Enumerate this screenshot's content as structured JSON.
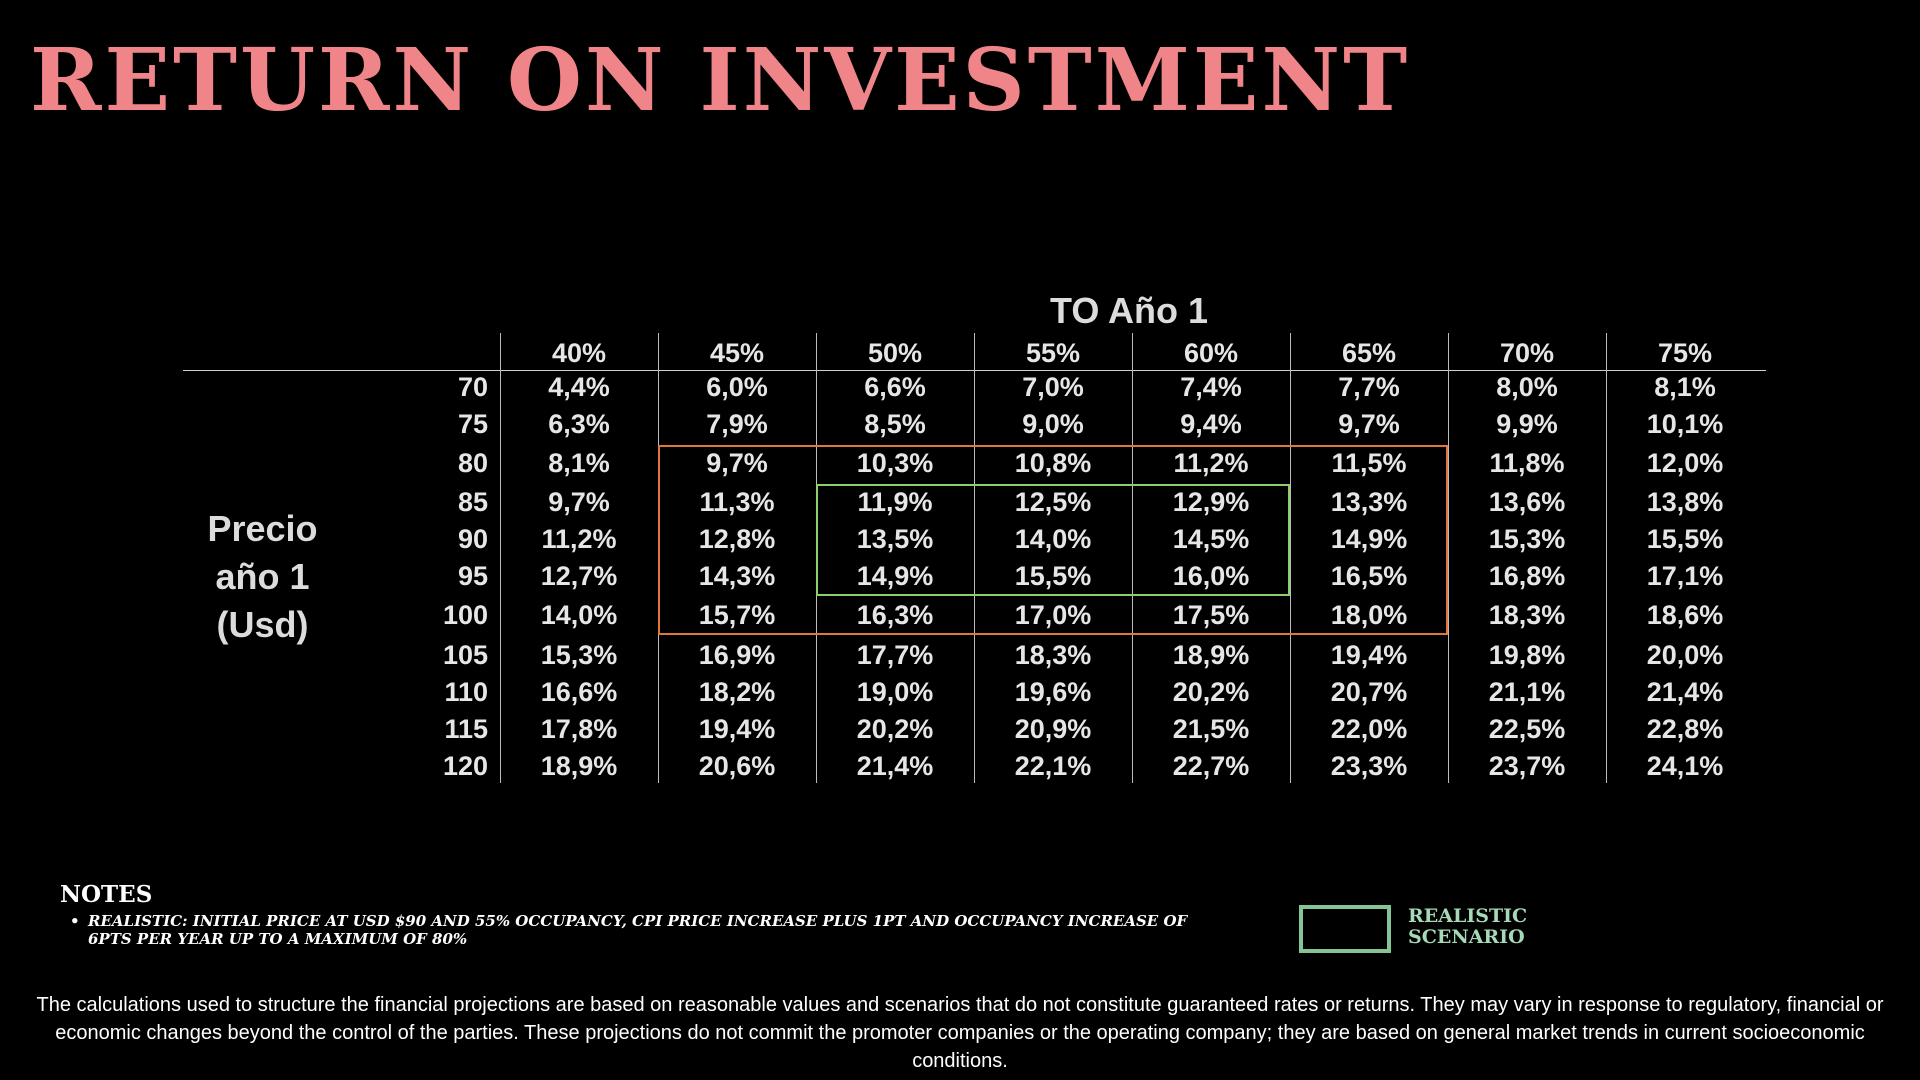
{
  "title": "RETURN ON INVESTMENT",
  "table": {
    "column_header_title": "TO Año 1",
    "row_header_title": [
      "Precio",
      "año 1",
      "(Usd)"
    ],
    "columns": [
      "40%",
      "45%",
      "50%",
      "55%",
      "60%",
      "65%",
      "70%",
      "75%"
    ],
    "rows": [
      {
        "price": "70",
        "values": [
          "4,4%",
          "6,0%",
          "6,6%",
          "7,0%",
          "7,4%",
          "7,7%",
          "8,0%",
          "8,1%"
        ]
      },
      {
        "price": "75",
        "values": [
          "6,3%",
          "7,9%",
          "8,5%",
          "9,0%",
          "9,4%",
          "9,7%",
          "9,9%",
          "10,1%"
        ]
      },
      {
        "price": "80",
        "values": [
          "8,1%",
          "9,7%",
          "10,3%",
          "10,8%",
          "11,2%",
          "11,5%",
          "11,8%",
          "12,0%"
        ]
      },
      {
        "price": "85",
        "values": [
          "9,7%",
          "11,3%",
          "11,9%",
          "12,5%",
          "12,9%",
          "13,3%",
          "13,6%",
          "13,8%"
        ]
      },
      {
        "price": "90",
        "values": [
          "11,2%",
          "12,8%",
          "13,5%",
          "14,0%",
          "14,5%",
          "14,9%",
          "15,3%",
          "15,5%"
        ]
      },
      {
        "price": "95",
        "values": [
          "12,7%",
          "14,3%",
          "14,9%",
          "15,5%",
          "16,0%",
          "16,5%",
          "16,8%",
          "17,1%"
        ]
      },
      {
        "price": "100",
        "values": [
          "14,0%",
          "15,7%",
          "16,3%",
          "17,0%",
          "17,5%",
          "18,0%",
          "18,3%",
          "18,6%"
        ]
      },
      {
        "price": "105",
        "values": [
          "15,3%",
          "16,9%",
          "17,7%",
          "18,3%",
          "18,9%",
          "19,4%",
          "19,8%",
          "20,0%"
        ]
      },
      {
        "price": "110",
        "values": [
          "16,6%",
          "18,2%",
          "19,0%",
          "19,6%",
          "20,2%",
          "20,7%",
          "21,1%",
          "21,4%"
        ]
      },
      {
        "price": "115",
        "values": [
          "17,8%",
          "19,4%",
          "20,2%",
          "20,9%",
          "21,5%",
          "22,0%",
          "22,5%",
          "22,8%"
        ]
      },
      {
        "price": "120",
        "values": [
          "18,9%",
          "20,6%",
          "21,4%",
          "22,1%",
          "22,7%",
          "23,3%",
          "23,7%",
          "24,1%"
        ]
      }
    ],
    "highlight_orange": {
      "color": "#e2773a",
      "columns": [
        "45%",
        "65%"
      ],
      "prices": [
        "80",
        "100"
      ]
    },
    "highlight_green": {
      "color": "#8dcf6a",
      "columns": [
        "50%",
        "60%"
      ],
      "prices": [
        "85",
        "95"
      ]
    }
  },
  "notes": {
    "title": "NOTES",
    "items": [
      "REALISTIC: INITIAL PRICE AT USD $90 AND 55% OCCUPANCY, CPI PRICE INCREASE PLUS 1PT AND OCCUPANCY INCREASE OF 6PTS PER YEAR UP TO A MAXIMUM OF 80%"
    ]
  },
  "legend": {
    "label": "REALISTIC SCENARIO",
    "color": "#83c595"
  },
  "disclaimer": "The calculations used to structure the financial projections are based on reasonable values and scenarios that do not constitute guaranteed rates or returns. They may vary in response to regulatory, financial or economic changes beyond the control of the parties. These projections do not commit the promoter companies or the operating company; they are based on general market trends in current socioeconomic conditions."
}
